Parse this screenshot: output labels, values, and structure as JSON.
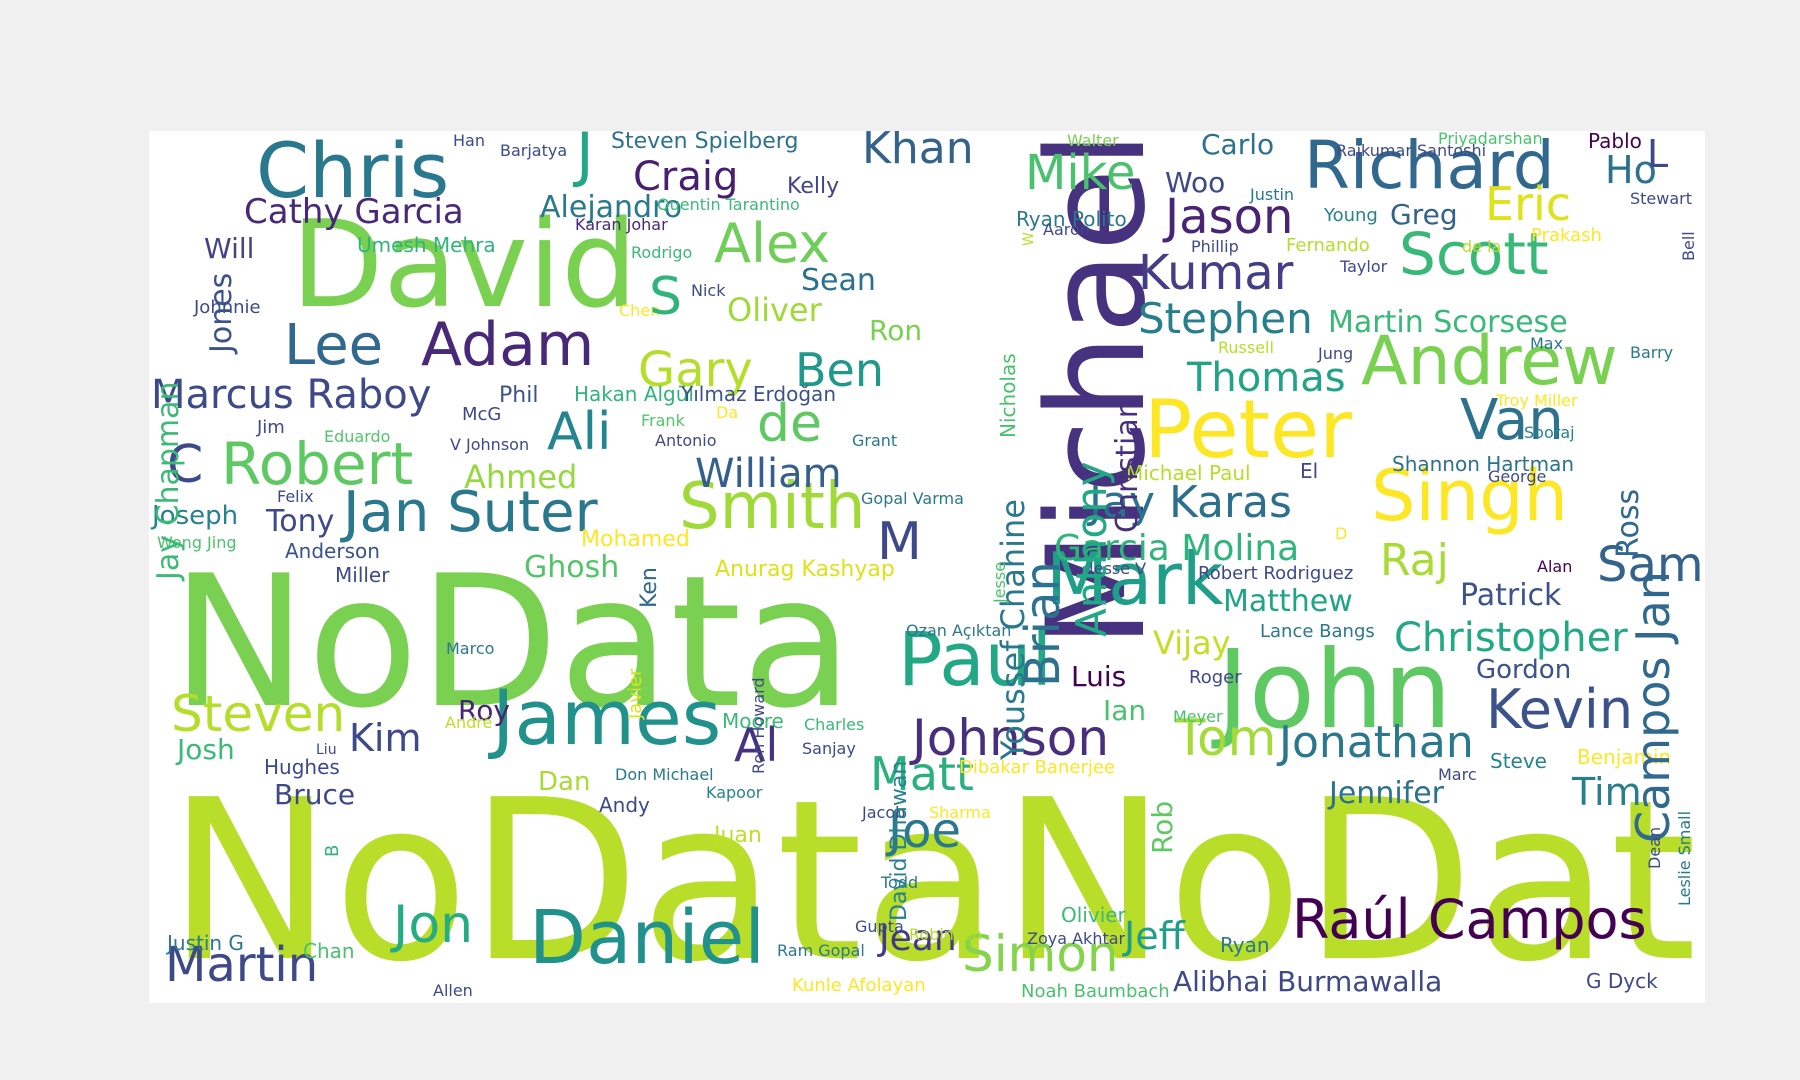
{
  "words": [
    {
      "text": "NoData",
      "color": "#b8de29"
    },
    {
      "text": "NoData",
      "color": "#b8de29"
    },
    {
      "text": "NoData",
      "color": "#7ad151"
    },
    {
      "text": "Michael",
      "color": "#46327e"
    },
    {
      "text": "David",
      "color": "#7ad151"
    },
    {
      "text": "John",
      "color": "#5ec962"
    },
    {
      "text": "Peter",
      "color": "#fde725"
    },
    {
      "text": "Chris",
      "color": "#2a788e"
    },
    {
      "text": "Daniel",
      "color": "#21918c"
    },
    {
      "text": "James",
      "color": "#21918c"
    },
    {
      "text": "Paul",
      "color": "#22a884"
    },
    {
      "text": "Mark",
      "color": "#1f9e89"
    },
    {
      "text": "Singh",
      "color": "#fde725"
    },
    {
      "text": "Andrew",
      "color": "#7ad151"
    },
    {
      "text": "Richard",
      "color": "#31688e"
    },
    {
      "text": "Smith",
      "color": "#a0da39"
    },
    {
      "text": "Adam",
      "color": "#482878"
    },
    {
      "text": "Robert",
      "color": "#5ec962"
    },
    {
      "text": "Jan Suter",
      "color": "#2a788e"
    },
    {
      "text": "Scott",
      "color": "#38b977"
    },
    {
      "text": "Raúl Campos",
      "color": "#440154"
    },
    {
      "text": "Kevin",
      "color": "#3b528b"
    },
    {
      "text": "Van",
      "color": "#2c728e"
    },
    {
      "text": "Alex",
      "color": "#6ece58"
    },
    {
      "text": "Lee",
      "color": "#31688e"
    },
    {
      "text": "Jon",
      "color": "#25ac82"
    },
    {
      "text": "Simon",
      "color": "#84d44b"
    },
    {
      "text": "Ali",
      "color": "#25858e"
    },
    {
      "text": "de",
      "color": "#5ec962"
    },
    {
      "text": "Johnson",
      "color": "#472f7d"
    },
    {
      "text": "Tom",
      "color": "#a5db36"
    },
    {
      "text": "Jonathan",
      "color": "#2a788e"
    },
    {
      "text": "Steven",
      "color": "#b5de2b"
    },
    {
      "text": "Martin",
      "color": "#3e4989"
    },
    {
      "text": "Mike",
      "color": "#4ac16d"
    },
    {
      "text": "Jason",
      "color": "#482475"
    },
    {
      "text": "Kumar",
      "color": "#433e85"
    },
    {
      "text": "Stephen",
      "color": "#277f8e"
    },
    {
      "text": "Jay Karas",
      "color": "#2d708e"
    },
    {
      "text": "Joe",
      "color": "#2a788e"
    },
    {
      "text": "Gary",
      "color": "#b5de2b"
    },
    {
      "text": "Ben",
      "color": "#1f9a8a"
    },
    {
      "text": "Eric",
      "color": "#dde318"
    },
    {
      "text": "Thomas",
      "color": "#20a386"
    },
    {
      "text": "Christopher",
      "color": "#22a884"
    },
    {
      "text": "Sam",
      "color": "#33638d"
    },
    {
      "text": "Raj",
      "color": "#a8db34"
    },
    {
      "text": "Marcus Raboy",
      "color": "#3e4989"
    },
    {
      "text": "Matt",
      "color": "#2ab07f"
    },
    {
      "text": "Al",
      "color": "#46337f"
    },
    {
      "text": "Jeff",
      "color": "#1f9e89"
    },
    {
      "text": "Jean",
      "color": "#443a83"
    },
    {
      "text": "Craig",
      "color": "#481f70"
    },
    {
      "text": "Khan",
      "color": "#33638d"
    },
    {
      "text": "Garcia Molina",
      "color": "#2fb47c"
    },
    {
      "text": "William",
      "color": "#355f8d"
    },
    {
      "text": "Matthew",
      "color": "#20a486"
    },
    {
      "text": "Jennifer",
      "color": "#2c728e"
    },
    {
      "text": "Tim",
      "color": "#277f8e"
    },
    {
      "text": "Kim",
      "color": "#3e4989"
    },
    {
      "text": "Ho",
      "color": "#2c728e"
    },
    {
      "text": "Martin Scorsese",
      "color": "#38b977"
    },
    {
      "text": "Cathy Garcia",
      "color": "#482878"
    },
    {
      "text": "Alejandro",
      "color": "#2a788e"
    },
    {
      "text": "Ahmed",
      "color": "#95d840"
    },
    {
      "text": "Vijay",
      "color": "#c2df23"
    },
    {
      "text": "Patrick",
      "color": "#3b528b"
    },
    {
      "text": "Sean",
      "color": "#2c728e"
    },
    {
      "text": "Oliver",
      "color": "#a0da39"
    },
    {
      "text": "Gordon",
      "color": "#3b528b"
    },
    {
      "text": "Joseph",
      "color": "#26828e"
    },
    {
      "text": "Tony",
      "color": "#3e4989"
    },
    {
      "text": "Josh",
      "color": "#3aba76"
    },
    {
      "text": "Bruce",
      "color": "#3e4989"
    },
    {
      "text": "Luis",
      "color": "#440154"
    },
    {
      "text": "Greg",
      "color": "#33638d"
    },
    {
      "text": "Carlo",
      "color": "#2c728e"
    },
    {
      "text": "Ghosh",
      "color": "#52c569"
    },
    {
      "text": "Alibhai Burmawalla",
      "color": "#3e4989"
    },
    {
      "text": "Woo",
      "color": "#3e4989"
    },
    {
      "text": "Ian",
      "color": "#4ac16d"
    },
    {
      "text": "Roy",
      "color": "#482475"
    },
    {
      "text": "Ron",
      "color": "#7ad151"
    },
    {
      "text": "Will",
      "color": "#414487"
    },
    {
      "text": "Umesh Mehra",
      "color": "#2fb47c"
    },
    {
      "text": "Steven Spielberg",
      "color": "#2c728e"
    },
    {
      "text": "Anurag Kashyap",
      "color": "#dde318"
    },
    {
      "text": "Michael Paul",
      "color": "#b5de2b"
    },
    {
      "text": "Shannon Hartman",
      "color": "#2c728e"
    },
    {
      "text": "Olivier",
      "color": "#3aba76"
    },
    {
      "text": "Ryan Polito",
      "color": "#2a788e"
    },
    {
      "text": "Hakan Algül",
      "color": "#2fb47c"
    },
    {
      "text": "Yılmaz Erdoğan",
      "color": "#3b528b"
    },
    {
      "text": "Andy",
      "color": "#3e4989"
    },
    {
      "text": "Dan",
      "color": "#a8db34"
    },
    {
      "text": "Anderson",
      "color": "#3b528b"
    },
    {
      "text": "Miller",
      "color": "#3e4989"
    },
    {
      "text": "Hughes",
      "color": "#3e4989"
    },
    {
      "text": "Steve",
      "color": "#26828e"
    },
    {
      "text": "Benjamin",
      "color": "#fde725"
    },
    {
      "text": "Justin G",
      "color": "#2a788e"
    },
    {
      "text": "Chan",
      "color": "#4ac16d"
    },
    {
      "text": "Ryan",
      "color": "#2a788e"
    },
    {
      "text": "G Dyck",
      "color": "#3e4989"
    },
    {
      "text": "Lance Bangs",
      "color": "#2a788e"
    },
    {
      "text": "Robert Rodriguez",
      "color": "#3e4989"
    },
    {
      "text": "Phil",
      "color": "#3b528b"
    },
    {
      "text": "Moore",
      "color": "#3aba76"
    },
    {
      "text": "Juan",
      "color": "#bddf26"
    },
    {
      "text": "Mohamed",
      "color": "#fde725"
    },
    {
      "text": "Kelly",
      "color": "#414487"
    },
    {
      "text": "George",
      "color": "#3e4989"
    },
    {
      "text": "Rajkumar Santoshi",
      "color": "#3e4989"
    },
    {
      "text": "Troy Miller",
      "color": "#fde725"
    },
    {
      "text": "Sooraj",
      "color": "#26828e"
    },
    {
      "text": "Quentin Tarantino",
      "color": "#3aba76"
    },
    {
      "text": "Karan Johar",
      "color": "#482878"
    },
    {
      "text": "Fernando",
      "color": "#b5de2b"
    },
    {
      "text": "Justin",
      "color": "#2a788e"
    },
    {
      "text": "Young",
      "color": "#26828e"
    },
    {
      "text": "Stewart",
      "color": "#3e4989"
    },
    {
      "text": "Prakash",
      "color": "#fde725"
    },
    {
      "text": "Phillip",
      "color": "#3e4989"
    },
    {
      "text": "Taylor",
      "color": "#3e4989"
    },
    {
      "text": "Rodrigo",
      "color": "#38b977"
    },
    {
      "text": "Aaron",
      "color": "#3e4989"
    },
    {
      "text": "Nick",
      "color": "#3e4989"
    },
    {
      "text": "Chen",
      "color": "#fde725"
    },
    {
      "text": "Johnnie",
      "color": "#3e4989"
    },
    {
      "text": "Jim",
      "color": "#3e4989"
    },
    {
      "text": "Eduardo",
      "color": "#52c569"
    },
    {
      "text": "V Johnson",
      "color": "#3e4989"
    },
    {
      "text": "Antonio",
      "color": "#3e4989"
    },
    {
      "text": "Frank",
      "color": "#52c569"
    },
    {
      "text": "Grant",
      "color": "#2a788e"
    },
    {
      "text": "Gopal Varma",
      "color": "#2a788e"
    },
    {
      "text": "Felix",
      "color": "#3e4989"
    },
    {
      "text": "Wong Jing",
      "color": "#4ac16d"
    },
    {
      "text": "Jesse V",
      "color": "#3e4989"
    },
    {
      "text": "Alan",
      "color": "#440154"
    },
    {
      "text": "Marco",
      "color": "#2a788e"
    },
    {
      "text": "Ozan Açıktan",
      "color": "#2a788e"
    },
    {
      "text": "Roger",
      "color": "#3e4989"
    },
    {
      "text": "Meyer",
      "color": "#4ac16d"
    },
    {
      "text": "André",
      "color": "#bddf26"
    },
    {
      "text": "Liu",
      "color": "#3e4989"
    },
    {
      "text": "Charles",
      "color": "#3aba76"
    },
    {
      "text": "Sanjay",
      "color": "#3e4989"
    },
    {
      "text": "Don Michael",
      "color": "#2a788e"
    },
    {
      "text": "Dibakar Banerjee",
      "color": "#fde725"
    },
    {
      "text": "Marc",
      "color": "#3e4989"
    },
    {
      "text": "Kapoor",
      "color": "#26828e"
    },
    {
      "text": "Jacob",
      "color": "#3e4989"
    },
    {
      "text": "Sharma",
      "color": "#fde725"
    },
    {
      "text": "Todd",
      "color": "#2a788e"
    },
    {
      "text": "Gupta",
      "color": "#3e4989"
    },
    {
      "text": "Robinson",
      "color": "#b5de2b"
    },
    {
      "text": "Zoya Akhtar",
      "color": "#3e4989"
    },
    {
      "text": "Ram Gopal",
      "color": "#2a788e"
    },
    {
      "text": "Kunle Afolayan",
      "color": "#fde725"
    },
    {
      "text": "Noah Baumbach",
      "color": "#4ac16d"
    },
    {
      "text": "Allen",
      "color": "#3e4989"
    },
    {
      "text": "Han",
      "color": "#3e4989"
    },
    {
      "text": "Barjatya",
      "color": "#3e4989"
    },
    {
      "text": "J",
      "color": "#22a884"
    },
    {
      "text": "Walter",
      "color": "#7ad151"
    },
    {
      "text": "Priyadarshan",
      "color": "#4ac16d"
    },
    {
      "text": "Pablo",
      "color": "#440154"
    },
    {
      "text": "L",
      "color": "#3e4989"
    },
    {
      "text": "de la",
      "color": "#b5de2b"
    },
    {
      "text": "Bell",
      "color": "#3e4989"
    },
    {
      "text": "Jung",
      "color": "#3e4989"
    },
    {
      "text": "Max",
      "color": "#2a788e"
    },
    {
      "text": "Barry",
      "color": "#2a788e"
    },
    {
      "text": "Russell",
      "color": "#b5de2b"
    },
    {
      "text": "El",
      "color": "#3e4989"
    },
    {
      "text": "D",
      "color": "#fde725"
    },
    {
      "text": "Da",
      "color": "#fde725"
    },
    {
      "text": "McG",
      "color": "#3e4989"
    },
    {
      "text": "S",
      "color": "#2fb47c"
    },
    {
      "text": "C",
      "color": "#3e4989"
    },
    {
      "text": "M",
      "color": "#3e4989"
    },
    {
      "text": "W",
      "color": "#b5de2b"
    },
    {
      "text": "B",
      "color": "#2fb47c"
    },
    {
      "text": "Jones",
      "color": "#3b528b"
    },
    {
      "text": "Jay Chapman",
      "color": "#3aba76"
    },
    {
      "text": "Youssef Chahine",
      "color": "#2a788e"
    },
    {
      "text": "Nicholas",
      "color": "#4ac16d"
    },
    {
      "text": "Anthony",
      "color": "#22a884"
    },
    {
      "text": "Christian",
      "color": "#472f7d"
    },
    {
      "text": "Brian",
      "color": "#2c728e"
    },
    {
      "text": "Campos Jan",
      "color": "#31688e"
    },
    {
      "text": "Ross",
      "color": "#31688e"
    },
    {
      "text": "Jesse",
      "color": "#4ac16d"
    },
    {
      "text": "Ken",
      "color": "#31688e"
    },
    {
      "text": "Ron Howard",
      "color": "#3e4989"
    },
    {
      "text": "Javier",
      "color": "#dde318"
    },
    {
      "text": "David Dhawan",
      "color": "#26828e"
    },
    {
      "text": "Rob",
      "color": "#5ec962"
    },
    {
      "text": "Dean",
      "color": "#3e4989"
    },
    {
      "text": "Leslie Small",
      "color": "#2a788e"
    }
  ]
}
